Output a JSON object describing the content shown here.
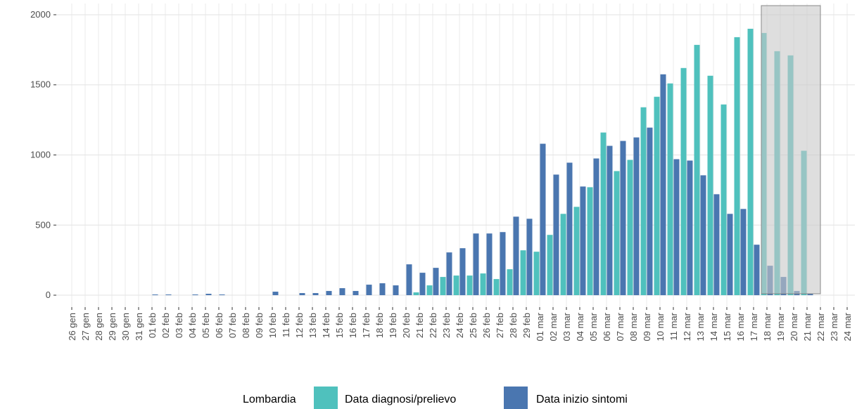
{
  "chart_data": {
    "type": "bar",
    "legend_title": "Lombardia",
    "categories": [
      "26 gen",
      "27 gen",
      "28 gen",
      "29 gen",
      "30 gen",
      "31 gen",
      "01 feb",
      "02 feb",
      "03 feb",
      "04 feb",
      "05 feb",
      "06 feb",
      "07 feb",
      "08 feb",
      "09 feb",
      "10 feb",
      "11 feb",
      "12 feb",
      "13 feb",
      "14 feb",
      "15 feb",
      "16 feb",
      "17 feb",
      "18 feb",
      "19 feb",
      "20 feb",
      "21 feb",
      "22 feb",
      "23 feb",
      "24 feb",
      "25 feb",
      "26 feb",
      "27 feb",
      "28 feb",
      "29 feb",
      "01 mar",
      "02 mar",
      "03 mar",
      "04 mar",
      "05 mar",
      "06 mar",
      "07 mar",
      "08 mar",
      "09 mar",
      "10 mar",
      "11 mar",
      "12 mar",
      "13 mar",
      "14 mar",
      "15 mar",
      "16 mar",
      "17 mar",
      "18 mar",
      "19 mar",
      "20 mar",
      "21 mar",
      "22 mar",
      "23 mar",
      "24 mar"
    ],
    "series": [
      {
        "name": "Data diagnosi/prelievo",
        "color": "#4fc1bd",
        "values": [
          0,
          0,
          0,
          0,
          0,
          0,
          0,
          0,
          0,
          0,
          0,
          0,
          0,
          0,
          0,
          0,
          0,
          0,
          0,
          0,
          0,
          0,
          0,
          0,
          0,
          0,
          20,
          70,
          130,
          140,
          140,
          155,
          115,
          185,
          320,
          310,
          430,
          580,
          630,
          770,
          1160,
          885,
          965,
          1340,
          1415,
          1510,
          1620,
          1785,
          1565,
          1360,
          1840,
          1900,
          1870,
          1740,
          1710,
          1030,
          0,
          0,
          0
        ]
      },
      {
        "name": "Data inizio sintomi",
        "color": "#4a76b0",
        "values": [
          0,
          0,
          0,
          0,
          0,
          0,
          5,
          5,
          0,
          5,
          10,
          5,
          0,
          0,
          0,
          25,
          0,
          15,
          15,
          30,
          50,
          30,
          75,
          85,
          70,
          220,
          160,
          195,
          305,
          335,
          440,
          440,
          450,
          560,
          545,
          1080,
          860,
          945,
          775,
          975,
          1065,
          1100,
          1125,
          1195,
          1575,
          970,
          960,
          855,
          720,
          580,
          615,
          360,
          210,
          130,
          30,
          10,
          0,
          0,
          0
        ]
      }
    ],
    "ylim": [
      -85,
      2080
    ],
    "yticks": [
      0,
      500,
      1000,
      1500,
      2000
    ],
    "grid": true
  }
}
